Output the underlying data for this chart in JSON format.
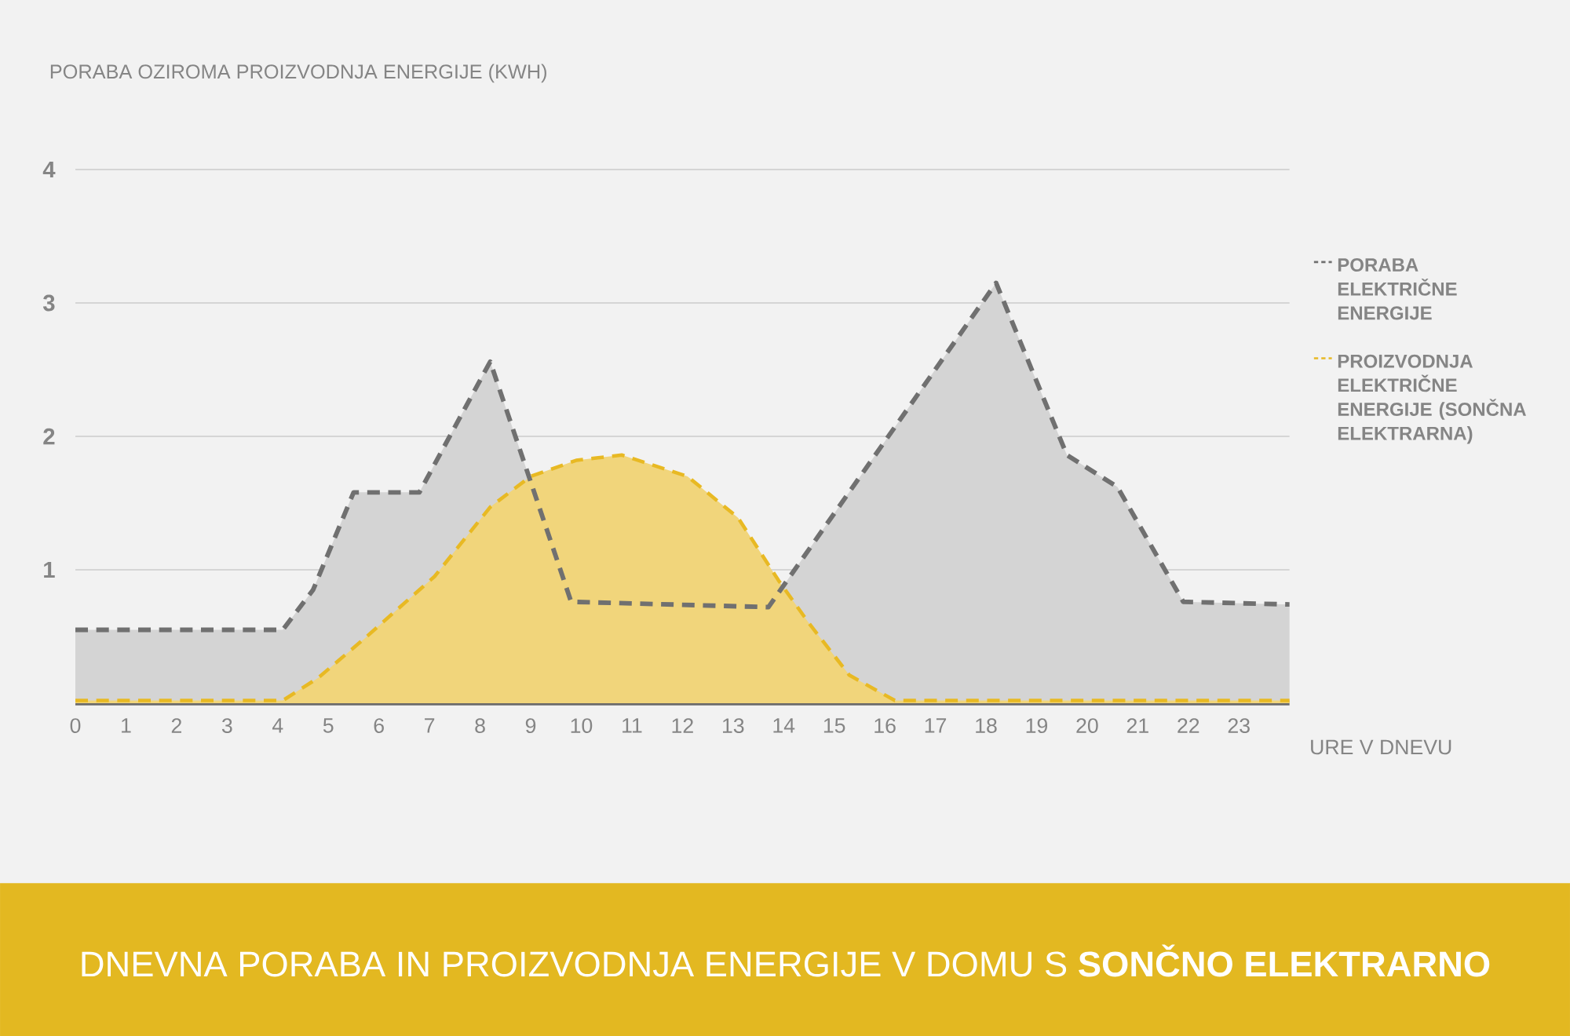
{
  "chart_data": {
    "type": "area",
    "title": "DNEVNA PORABA IN PROIZVODNJA ENERGIJE V DOMU S **SONČNO ELEKTRARNO**",
    "ylabel": "PORABA OZIROMA PROIZVODNJA ENERGIJE (KWH)",
    "xlabel": "URE V DNEVU",
    "xlim": [
      0,
      24
    ],
    "xticks": [
      0,
      1,
      2,
      3,
      4,
      5,
      6,
      7,
      8,
      9,
      10,
      11,
      12,
      13,
      14,
      15,
      16,
      17,
      18,
      19,
      20,
      21,
      22,
      23
    ],
    "ylim": [
      0,
      4
    ],
    "yticks": [
      1,
      2,
      3,
      4
    ],
    "grid": "y",
    "legend": "right",
    "line_style": "dashed",
    "series": [
      {
        "name": "PORABA ELEKTRIČNE ENERGIJE",
        "color": "#707070",
        "x": [
          0,
          4.1,
          4.7,
          5.5,
          6.8,
          8.2,
          9.8,
          13.7,
          18.2,
          19.6,
          20.6,
          21.9,
          24
        ],
        "values": [
          0.55,
          0.55,
          0.85,
          1.58,
          1.58,
          2.56,
          0.76,
          0.72,
          3.15,
          1.86,
          1.62,
          0.76,
          0.74
        ]
      },
      {
        "name": "PROIZVODNJA ELEKTRIČNE ENERGIJE (SONČNA ELEKTRARNA)",
        "color": "#e8b923",
        "x": [
          0,
          4.1,
          4.8,
          5.7,
          7.1,
          8.2,
          9.0,
          9.9,
          10.8,
          12.1,
          13.1,
          13.9,
          14.5,
          15.3,
          16.2,
          24
        ],
        "values": [
          0.02,
          0.02,
          0.19,
          0.48,
          0.95,
          1.47,
          1.7,
          1.82,
          1.86,
          1.7,
          1.39,
          0.92,
          0.6,
          0.21,
          0.02,
          0.02
        ]
      }
    ]
  }
}
